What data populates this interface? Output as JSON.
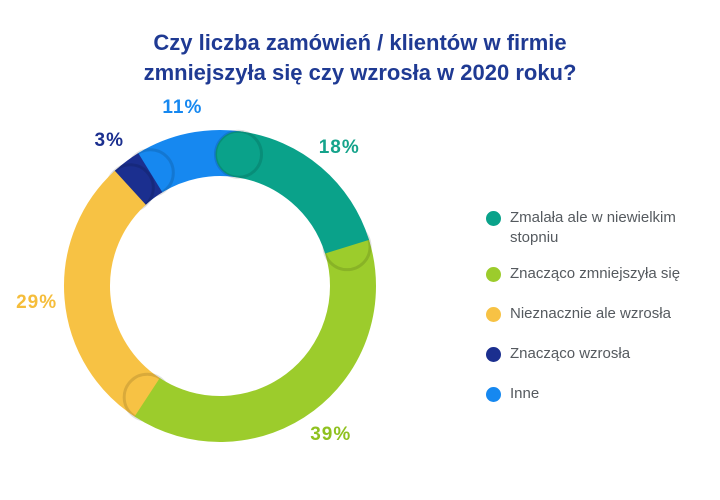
{
  "chart_data": {
    "type": "pie",
    "donut": true,
    "title_lines": [
      "Czy liczba zamówień / klientów w firmie",
      "zmniejszyła się czy wzrosła w 2020 roku?"
    ],
    "slices": [
      {
        "name": "Zmalała ale w niewielkim stopniu",
        "value": 18,
        "label": "18%",
        "color": "#0aa28a",
        "label_color": "#15a38b"
      },
      {
        "name": "Znacząco zmniejszyła się",
        "value": 39,
        "label": "39%",
        "color": "#9ccc2c",
        "label_color": "#8fc11f"
      },
      {
        "name": "Nieznacznie ale wzrosła",
        "value": 29,
        "label": "29%",
        "color": "#f7c244",
        "label_color": "#f5bd3b"
      },
      {
        "name": "Znacząco wzrosła",
        "value": 3,
        "label": "3%",
        "color": "#1b2f8f",
        "label_color": "#1b2f8f"
      },
      {
        "name": "Inne",
        "value": 11,
        "label": "11%",
        "color": "#1688f0",
        "label_color": "#1688f0"
      }
    ],
    "legend_position": "right"
  },
  "legend": {
    "items": [
      {
        "line1": "Zmalała ale w niewielkim",
        "line2": "stopniu",
        "color": "#0aa28a"
      },
      {
        "line1": "Znacząco zmniejszyła się",
        "line2": "",
        "color": "#9ccc2c"
      },
      {
        "line1": "Nieznacznie ale wzrosła",
        "line2": "",
        "color": "#f7c244"
      },
      {
        "line1": "Znacząco wzrosła",
        "line2": "",
        "color": "#1b2f8f"
      },
      {
        "line1": "Inne",
        "line2": "",
        "color": "#1688f0"
      }
    ]
  }
}
